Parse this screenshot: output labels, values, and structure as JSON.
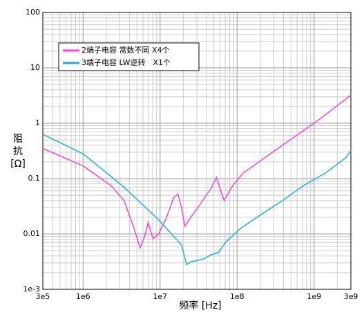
{
  "chart_data": {
    "type": "line",
    "xlabel": "频率 [Hz]",
    "ylabel_lines": [
      "阻",
      "抗",
      "[Ω]"
    ],
    "xscale": "log",
    "yscale": "log",
    "grid": true,
    "minor_grid": true,
    "legend": "upper left",
    "xlim": [
      300000,
      3000000000
    ],
    "ylim": [
      0.001,
      100
    ],
    "xticks": [
      {
        "value": 300000,
        "label": "3e5"
      },
      {
        "value": 1000000,
        "label": "1e6"
      },
      {
        "value": 10000000,
        "label": "1e7"
      },
      {
        "value": 100000000,
        "label": "1e8"
      },
      {
        "value": 1000000000,
        "label": "1e9"
      },
      {
        "value": 3000000000,
        "label": "3e9"
      }
    ],
    "yticks": [
      {
        "value": 0.001,
        "label": "1e-3"
      },
      0.01,
      0.1,
      1,
      10,
      100
    ],
    "series": [
      {
        "name": "2端子电容 常数不同 X4个",
        "color": "#ee44dd",
        "x": [
          300000,
          1000000,
          2300000,
          3400000,
          4600000,
          5500000,
          6300000,
          7000000,
          8100000,
          9600000,
          12000000,
          15000000,
          17000000,
          19000000,
          21000000,
          25000000,
          33000000,
          46000000,
          54000000,
          60000000,
          68000000,
          87000000,
          120000000,
          390000000,
          1100000000,
          3000000000
        ],
        "values": [
          0.35,
          0.17,
          0.075,
          0.04,
          0.0125,
          0.0056,
          0.009,
          0.016,
          0.0082,
          0.01,
          0.019,
          0.045,
          0.053,
          0.03,
          0.0137,
          0.02,
          0.034,
          0.067,
          0.105,
          0.065,
          0.04,
          0.074,
          0.126,
          0.4,
          1.1,
          3.2
        ]
      },
      {
        "name": "3端子电容 LW逆转　X1个",
        "color": "#22aadd",
        "x": [
          300000,
          1000000,
          3400000,
          9600000,
          16000000,
          19000000,
          22000000,
          26000000,
          36000000,
          46000000,
          57000000,
          71000000,
          110000000,
          210000000,
          390000000,
          730000000,
          1400000000,
          2600000000,
          3000000000
        ],
        "values": [
          0.63,
          0.28,
          0.07,
          0.018,
          0.0082,
          0.0063,
          0.0028,
          0.0032,
          0.0035,
          0.0042,
          0.0046,
          0.0071,
          0.0125,
          0.023,
          0.04,
          0.075,
          0.126,
          0.24,
          0.32
        ]
      }
    ]
  }
}
